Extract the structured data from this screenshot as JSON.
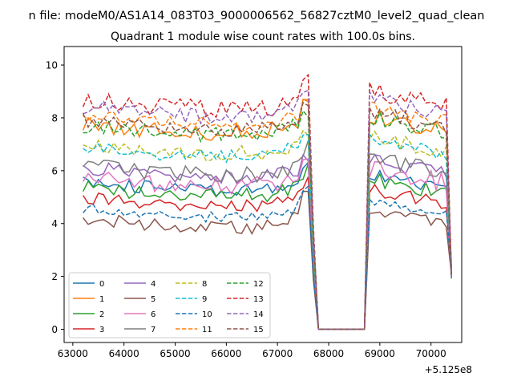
{
  "figure": {
    "suptitle": "n file: modeM0/AS1A14_083T03_9000006562_56827cztM0_level2_quad_clean",
    "title": "Quadrant 1 module wise count rates with 100.0s bins.",
    "x_offset_label": "+5.125e8"
  },
  "chart_data": {
    "type": "line",
    "title": "Quadrant 1 module wise count rates with 100.0s bins.",
    "xlabel": "",
    "ylabel": "",
    "x_offset": 512500000,
    "xlim": [
      62830,
      70600
    ],
    "ylim": [
      -0.5,
      10.7
    ],
    "xticks": [
      63000,
      64000,
      65000,
      66000,
      67000,
      68000,
      69000,
      70000
    ],
    "yticks": [
      0,
      2,
      4,
      6,
      8,
      10
    ],
    "grid": false,
    "legend_placement": "lower-left",
    "legend_columns": 4,
    "bin_width_s": 100,
    "x_start": 63200,
    "gap_start": 67700,
    "gap_end": 68800,
    "x_end": 70420,
    "series": [
      {
        "name": "0",
        "color": "#1f77b4",
        "dash": "solid",
        "level": 5.6,
        "noise": 0.25,
        "hump": 0.4,
        "phase": 0
      },
      {
        "name": "1",
        "color": "#ff7f0e",
        "dash": "solid",
        "level": 7.8,
        "noise": 0.35,
        "hump": 0.4,
        "phase": 1
      },
      {
        "name": "2",
        "color": "#2ca02c",
        "dash": "solid",
        "level": 5.4,
        "noise": 0.3,
        "hump": 0.4,
        "phase": 2
      },
      {
        "name": "3",
        "color": "#d62728",
        "dash": "solid",
        "level": 5.0,
        "noise": 0.25,
        "hump": 0.4,
        "phase": 3
      },
      {
        "name": "4",
        "color": "#9467bd",
        "dash": "solid",
        "level": 6.1,
        "noise": 0.3,
        "hump": 0.3,
        "phase": 4
      },
      {
        "name": "5",
        "color": "#8c564b",
        "dash": "solid",
        "level": 4.2,
        "noise": 0.25,
        "hump": 0.5,
        "phase": 5
      },
      {
        "name": "6",
        "color": "#e377c2",
        "dash": "solid",
        "level": 5.8,
        "noise": 0.35,
        "hump": 0.4,
        "phase": 6
      },
      {
        "name": "7",
        "color": "#7f7f7f",
        "dash": "solid",
        "level": 6.2,
        "noise": 0.3,
        "hump": 0.4,
        "phase": 7
      },
      {
        "name": "8",
        "color": "#bcbd22",
        "dash": "dashed",
        "level": 7.0,
        "noise": 0.3,
        "hump": 0.4,
        "phase": 8
      },
      {
        "name": "9",
        "color": "#17becf",
        "dash": "dashed",
        "level": 6.9,
        "noise": 0.25,
        "hump": 0.4,
        "phase": 9
      },
      {
        "name": "10",
        "color": "#1f77b4",
        "dash": "dashed",
        "level": 4.6,
        "noise": 0.2,
        "hump": 0.4,
        "phase": 10
      },
      {
        "name": "11",
        "color": "#ff7f0e",
        "dash": "dashed",
        "level": 8.1,
        "noise": 0.3,
        "hump": 0.4,
        "phase": 11
      },
      {
        "name": "12",
        "color": "#2ca02c",
        "dash": "dashed",
        "level": 7.7,
        "noise": 0.3,
        "hump": 0.4,
        "phase": 12
      },
      {
        "name": "13",
        "color": "#d62728",
        "dash": "dashed",
        "level": 8.7,
        "noise": 0.35,
        "hump": 0.4,
        "phase": 13
      },
      {
        "name": "14",
        "color": "#9467bd",
        "dash": "dashed",
        "level": 8.4,
        "noise": 0.3,
        "hump": 0.4,
        "phase": 14
      },
      {
        "name": "15",
        "color": "#8c564b",
        "dash": "dashed",
        "level": 7.9,
        "noise": 0.3,
        "hump": 0.4,
        "phase": 15
      }
    ]
  }
}
